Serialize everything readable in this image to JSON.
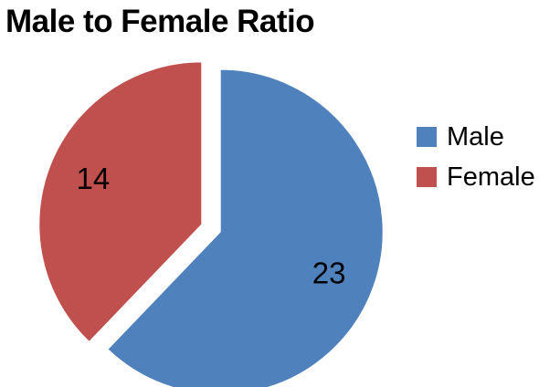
{
  "chart_data": {
    "type": "pie",
    "title": "Male to Female Ratio",
    "categories": [
      "Male",
      "Female"
    ],
    "values": [
      23,
      14
    ],
    "data_labels": [
      "23",
      "14"
    ],
    "colors": [
      "#4f81bd",
      "#c0504d"
    ],
    "legend_position": "right",
    "exploded": true
  }
}
